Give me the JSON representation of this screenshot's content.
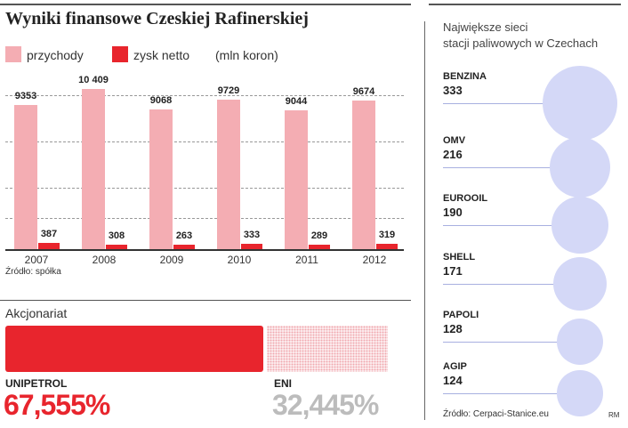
{
  "title": "Wyniki finansowe Czeskiej Rafinerskiej",
  "legend": {
    "revenue": "przychody",
    "net_profit": "zysk netto",
    "unit": "(mln koron)"
  },
  "colors": {
    "revenue": "#f4adb3",
    "net_profit": "#e8252d",
    "station": "#d4d8f7",
    "eni": "#f0a8ae",
    "eni_text": "#bcbcbc"
  },
  "source_left": "Źródło: spółka",
  "shareholders": {
    "label": "Akcjonariat",
    "unipetrol_name": "UNIPETROL",
    "unipetrol_pct": "67,555%",
    "eni_name": "ENI",
    "eni_pct": "32,445%"
  },
  "right": {
    "title_line1": "Największe sieci",
    "title_line2": "stacji paliwowych w Czechach",
    "source": "Źródło: Cerpaci-Stanice.eu",
    "credit": "RM"
  },
  "chart_data": [
    {
      "type": "bar",
      "title": "Wyniki finansowe Czeskiej Rafinerskiej",
      "unit": "(mln koron)",
      "categories": [
        "2007",
        "2008",
        "2009",
        "2010",
        "2011",
        "2012"
      ],
      "series": [
        {
          "name": "przychody",
          "values": [
            9353,
            10409,
            9068,
            9729,
            9044,
            9674
          ],
          "labels": [
            "9353",
            "10 409",
            "9068",
            "9729",
            "9044",
            "9674"
          ]
        },
        {
          "name": "zysk netto",
          "values": [
            387,
            308,
            263,
            333,
            289,
            319
          ],
          "labels": [
            "387",
            "308",
            "263",
            "333",
            "289",
            "319"
          ]
        }
      ],
      "ylim": [
        0,
        11000
      ],
      "grid": true,
      "legend": "top-left"
    },
    {
      "type": "bar",
      "title": "Akcjonariat",
      "categories": [
        "UNIPETROL",
        "ENI"
      ],
      "values": [
        67.555,
        32.445
      ],
      "labels": [
        "67,555%",
        "32,445%"
      ]
    },
    {
      "type": "bubble",
      "title": "Największe sieci stacji paliwowych w Czechach",
      "categories": [
        "BENZINA",
        "OMV",
        "EUROOIL",
        "SHELL",
        "PAPOLI",
        "AGIP"
      ],
      "values": [
        333,
        216,
        190,
        171,
        128,
        124
      ],
      "labels": [
        "333",
        "216",
        "190",
        "171",
        "128",
        "124"
      ]
    }
  ]
}
